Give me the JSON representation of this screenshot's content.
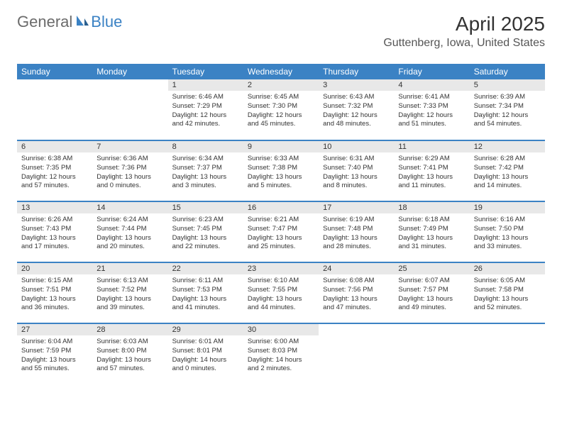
{
  "logo": {
    "general": "General",
    "blue": "Blue"
  },
  "title": "April 2025",
  "location": "Guttenberg, Iowa, United States",
  "colors": {
    "header_bg": "#3b82c4",
    "daynum_bg": "#e8e8e8",
    "row_border": "#3b82c4",
    "text": "#333333",
    "logo_gray": "#6b6b6b",
    "logo_blue": "#3b82c4"
  },
  "weekdays": [
    "Sunday",
    "Monday",
    "Tuesday",
    "Wednesday",
    "Thursday",
    "Friday",
    "Saturday"
  ],
  "first_weekday_index": 2,
  "days": [
    {
      "n": 1,
      "sunrise": "6:46 AM",
      "sunset": "7:29 PM",
      "daylight": "12 hours and 42 minutes."
    },
    {
      "n": 2,
      "sunrise": "6:45 AM",
      "sunset": "7:30 PM",
      "daylight": "12 hours and 45 minutes."
    },
    {
      "n": 3,
      "sunrise": "6:43 AM",
      "sunset": "7:32 PM",
      "daylight": "12 hours and 48 minutes."
    },
    {
      "n": 4,
      "sunrise": "6:41 AM",
      "sunset": "7:33 PM",
      "daylight": "12 hours and 51 minutes."
    },
    {
      "n": 5,
      "sunrise": "6:39 AM",
      "sunset": "7:34 PM",
      "daylight": "12 hours and 54 minutes."
    },
    {
      "n": 6,
      "sunrise": "6:38 AM",
      "sunset": "7:35 PM",
      "daylight": "12 hours and 57 minutes."
    },
    {
      "n": 7,
      "sunrise": "6:36 AM",
      "sunset": "7:36 PM",
      "daylight": "13 hours and 0 minutes."
    },
    {
      "n": 8,
      "sunrise": "6:34 AM",
      "sunset": "7:37 PM",
      "daylight": "13 hours and 3 minutes."
    },
    {
      "n": 9,
      "sunrise": "6:33 AM",
      "sunset": "7:38 PM",
      "daylight": "13 hours and 5 minutes."
    },
    {
      "n": 10,
      "sunrise": "6:31 AM",
      "sunset": "7:40 PM",
      "daylight": "13 hours and 8 minutes."
    },
    {
      "n": 11,
      "sunrise": "6:29 AM",
      "sunset": "7:41 PM",
      "daylight": "13 hours and 11 minutes."
    },
    {
      "n": 12,
      "sunrise": "6:28 AM",
      "sunset": "7:42 PM",
      "daylight": "13 hours and 14 minutes."
    },
    {
      "n": 13,
      "sunrise": "6:26 AM",
      "sunset": "7:43 PM",
      "daylight": "13 hours and 17 minutes."
    },
    {
      "n": 14,
      "sunrise": "6:24 AM",
      "sunset": "7:44 PM",
      "daylight": "13 hours and 20 minutes."
    },
    {
      "n": 15,
      "sunrise": "6:23 AM",
      "sunset": "7:45 PM",
      "daylight": "13 hours and 22 minutes."
    },
    {
      "n": 16,
      "sunrise": "6:21 AM",
      "sunset": "7:47 PM",
      "daylight": "13 hours and 25 minutes."
    },
    {
      "n": 17,
      "sunrise": "6:19 AM",
      "sunset": "7:48 PM",
      "daylight": "13 hours and 28 minutes."
    },
    {
      "n": 18,
      "sunrise": "6:18 AM",
      "sunset": "7:49 PM",
      "daylight": "13 hours and 31 minutes."
    },
    {
      "n": 19,
      "sunrise": "6:16 AM",
      "sunset": "7:50 PM",
      "daylight": "13 hours and 33 minutes."
    },
    {
      "n": 20,
      "sunrise": "6:15 AM",
      "sunset": "7:51 PM",
      "daylight": "13 hours and 36 minutes."
    },
    {
      "n": 21,
      "sunrise": "6:13 AM",
      "sunset": "7:52 PM",
      "daylight": "13 hours and 39 minutes."
    },
    {
      "n": 22,
      "sunrise": "6:11 AM",
      "sunset": "7:53 PM",
      "daylight": "13 hours and 41 minutes."
    },
    {
      "n": 23,
      "sunrise": "6:10 AM",
      "sunset": "7:55 PM",
      "daylight": "13 hours and 44 minutes."
    },
    {
      "n": 24,
      "sunrise": "6:08 AM",
      "sunset": "7:56 PM",
      "daylight": "13 hours and 47 minutes."
    },
    {
      "n": 25,
      "sunrise": "6:07 AM",
      "sunset": "7:57 PM",
      "daylight": "13 hours and 49 minutes."
    },
    {
      "n": 26,
      "sunrise": "6:05 AM",
      "sunset": "7:58 PM",
      "daylight": "13 hours and 52 minutes."
    },
    {
      "n": 27,
      "sunrise": "6:04 AM",
      "sunset": "7:59 PM",
      "daylight": "13 hours and 55 minutes."
    },
    {
      "n": 28,
      "sunrise": "6:03 AM",
      "sunset": "8:00 PM",
      "daylight": "13 hours and 57 minutes."
    },
    {
      "n": 29,
      "sunrise": "6:01 AM",
      "sunset": "8:01 PM",
      "daylight": "14 hours and 0 minutes."
    },
    {
      "n": 30,
      "sunrise": "6:00 AM",
      "sunset": "8:03 PM",
      "daylight": "14 hours and 2 minutes."
    }
  ],
  "labels": {
    "sunrise": "Sunrise:",
    "sunset": "Sunset:",
    "daylight": "Daylight:"
  }
}
